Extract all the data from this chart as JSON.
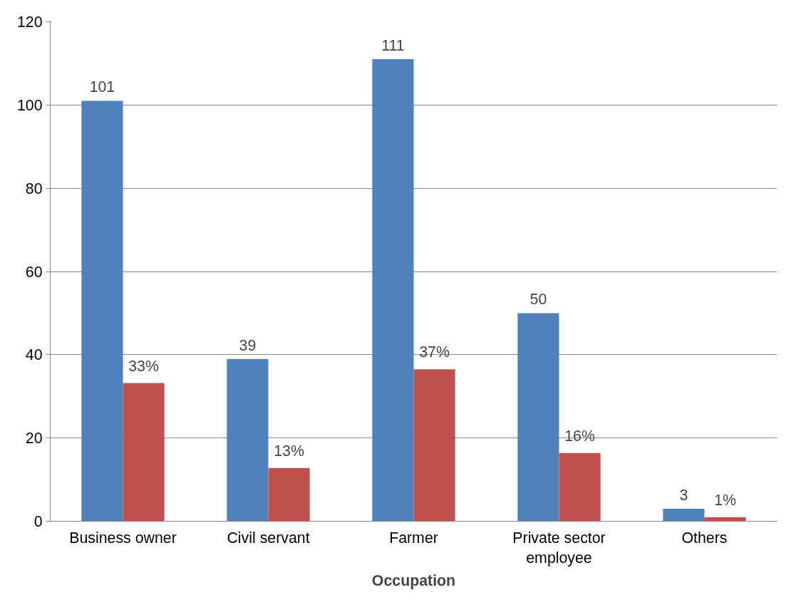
{
  "chart_data": {
    "type": "bar",
    "xlabel": "Occupation",
    "categories": [
      "Business owner",
      "Civil servant",
      "Farmer",
      "Private sector employee",
      "Others"
    ],
    "series": [
      {
        "color": "#4f81bd",
        "values": [
          101,
          39,
          111,
          50,
          3
        ],
        "value_labels": [
          "101",
          "39",
          "111",
          "50",
          "3"
        ]
      },
      {
        "color": "#c0504d",
        "values": [
          33.2,
          12.8,
          36.5,
          16.4,
          1.0
        ],
        "value_labels": [
          "33%",
          "13%",
          "37%",
          "16%",
          "1%"
        ]
      }
    ],
    "ylim": [
      0,
      120
    ],
    "yticks": [
      0,
      20,
      40,
      60,
      80,
      100,
      120
    ],
    "grid": "y"
  }
}
